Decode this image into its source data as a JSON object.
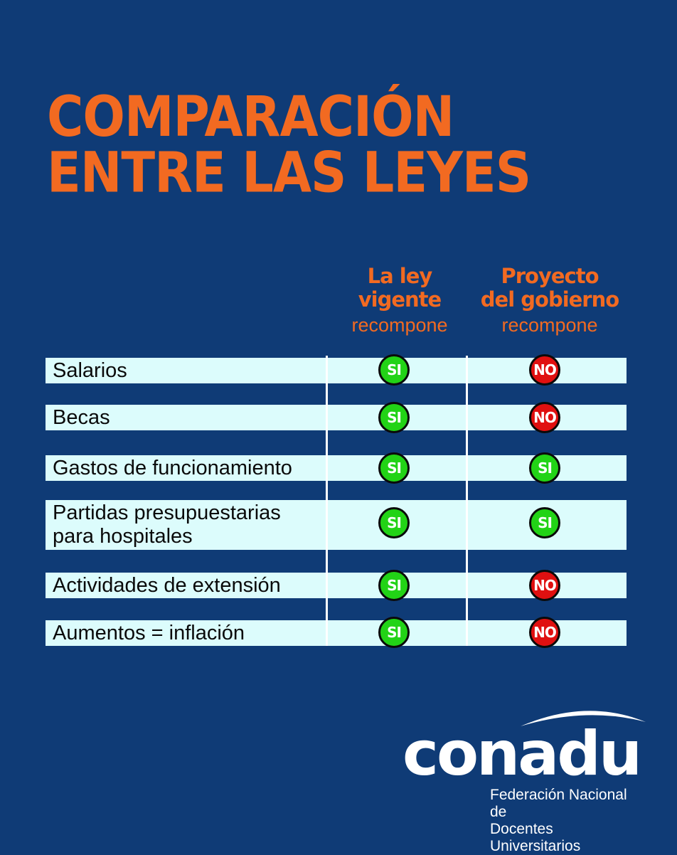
{
  "title": {
    "line1": "COMPARACIÓN",
    "line2": "ENTRE LAS LEYES"
  },
  "columns": [
    {
      "line1": "La ley",
      "line2": "vigente",
      "sub": "recompone"
    },
    {
      "line1": "Proyecto",
      "line2": "del gobierno",
      "sub": "recompone"
    }
  ],
  "rows": [
    {
      "label": "Salarios",
      "vigente": "SI",
      "proyecto": "NO"
    },
    {
      "label": "Becas",
      "vigente": "SI",
      "proyecto": "NO"
    },
    {
      "label": "Gastos de funcionamiento",
      "vigente": "SI",
      "proyecto": "SI"
    },
    {
      "label": "Partidas presupuestarias\npara hospitales",
      "vigente": "SI",
      "proyecto": "SI"
    },
    {
      "label": "Actividades de extensión",
      "vigente": "SI",
      "proyecto": "NO"
    },
    {
      "label": "Aumentos = inflación",
      "vigente": "SI",
      "proyecto": "NO"
    }
  ],
  "logo": {
    "word": "conadu",
    "subtitle": "Federación Nacional de\nDocentes Universitarios"
  },
  "colors": {
    "background": "#0f3b76",
    "accent": "#f26a21",
    "row": "#dcfcfc",
    "si": "#22d316",
    "no": "#e01010"
  }
}
